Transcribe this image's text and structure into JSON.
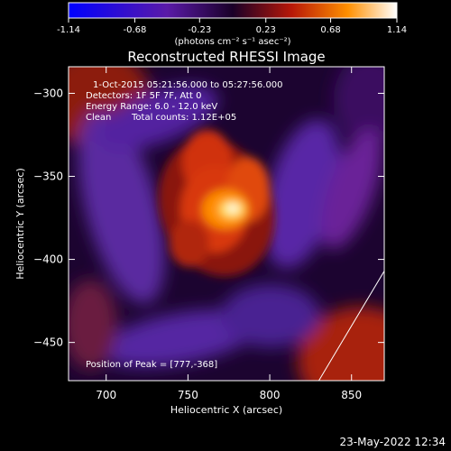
{
  "colorbar": {
    "ticks": [
      "-1.14",
      "-0.68",
      "-0.23",
      "0.23",
      "0.68",
      "1.14"
    ],
    "tick_values": [
      -1.14,
      -0.68,
      -0.23,
      0.23,
      0.68,
      1.14
    ],
    "range": [
      -1.14,
      1.14
    ],
    "unit_label": "(photons cm⁻² s⁻¹ asec⁻²)",
    "colormap": "blue-purple-red-yellow-white"
  },
  "chart_data": {
    "type": "heatmap",
    "title": "Reconstructed RHESSI Image",
    "xlabel": "Heliocentric X (arcsec)",
    "ylabel": "Heliocentric Y (arcsec)",
    "xlim": [
      677,
      870
    ],
    "ylim": [
      -473,
      -284
    ],
    "x_ticks": [
      700,
      750,
      800,
      850
    ],
    "y_ticks": [
      -300,
      -350,
      -400,
      -450
    ],
    "peak": [
      777,
      -368
    ],
    "annotations": {
      "time": "1-Oct-2015 05:21:56.000 to 05:27:56.000",
      "detectors": "Detectors: 1F 5F 7F, Att 0",
      "energy": "Energy Range: 6.0 - 12.0 keV",
      "method": "Clean",
      "counts": "Total counts: 1.12E+05",
      "peak": "Position of Peak = [777,-368]"
    },
    "limb_line": [
      [
        830,
        -473
      ],
      [
        870,
        -407
      ]
    ]
  },
  "footer": {
    "date": "23-May-2022 12:34"
  }
}
